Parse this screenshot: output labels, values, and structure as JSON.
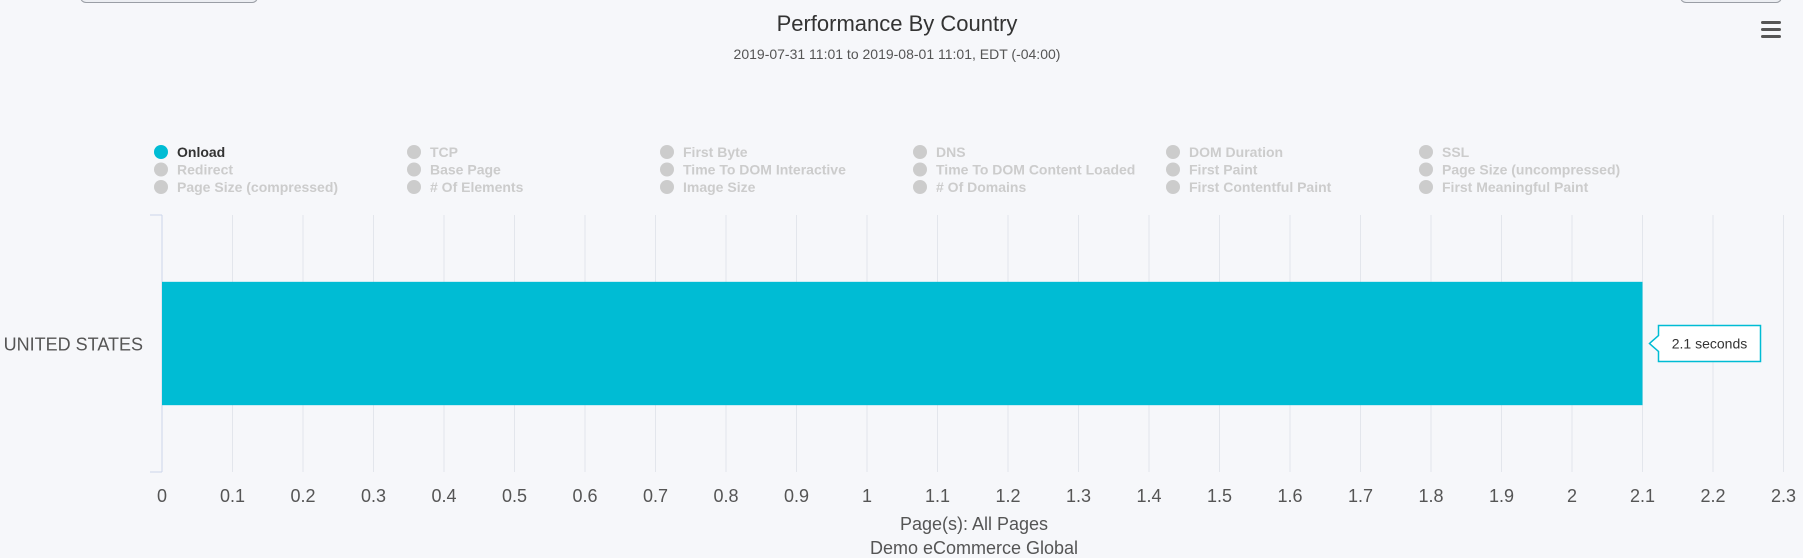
{
  "chart_data": {
    "type": "bar",
    "orientation": "horizontal",
    "title": "Performance By Country",
    "subtitle": "2019-07-31 11:01 to 2019-08-01 11:01, EDT (-04:00)",
    "categories": [
      "UNITED STATES"
    ],
    "values": [
      2.1
    ],
    "data_label": "2.1 seconds",
    "xlim": [
      0,
      2.3
    ],
    "x_ticks": [
      "0",
      "0.1",
      "0.2",
      "0.3",
      "0.4",
      "0.5",
      "0.6",
      "0.7",
      "0.8",
      "0.9",
      "1",
      "1.1",
      "1.2",
      "1.3",
      "1.4",
      "1.5",
      "1.6",
      "1.7",
      "1.8",
      "1.9",
      "2",
      "2.1",
      "2.2",
      "2.3"
    ],
    "x_caption": [
      "Page(s): All Pages",
      "Demo eCommerce Global"
    ],
    "grid": true,
    "legend_position": "top",
    "legend": [
      {
        "label": "Onload",
        "active": true
      },
      {
        "label": "TCP",
        "active": false
      },
      {
        "label": "First Byte",
        "active": false
      },
      {
        "label": "DNS",
        "active": false
      },
      {
        "label": "DOM Duration",
        "active": false
      },
      {
        "label": "SSL",
        "active": false
      },
      {
        "label": "Redirect",
        "active": false
      },
      {
        "label": "Base Page",
        "active": false
      },
      {
        "label": "Time To DOM Interactive",
        "active": false
      },
      {
        "label": "Time To DOM Content Loaded",
        "active": false
      },
      {
        "label": "First Paint",
        "active": false
      },
      {
        "label": "Page Size (uncompressed)",
        "active": false
      },
      {
        "label": "Page Size (compressed)",
        "active": false
      },
      {
        "label": "# Of Elements",
        "active": false
      },
      {
        "label": "Image Size",
        "active": false
      },
      {
        "label": "# Of Domains",
        "active": false
      },
      {
        "label": "First Contentful Paint",
        "active": false
      },
      {
        "label": "First Meaningful Paint",
        "active": false
      }
    ],
    "colors": {
      "bar": "#00bcd4",
      "legend_active": "#00bcd4",
      "legend_inactive": "#cccccc",
      "legend_text_active": "#333333",
      "legend_text_inactive": "#cccccc",
      "grid": "#e3e6ec",
      "axis_text": "#555555",
      "title": "#333333"
    }
  },
  "menu_icon": "hamburger-menu-icon"
}
